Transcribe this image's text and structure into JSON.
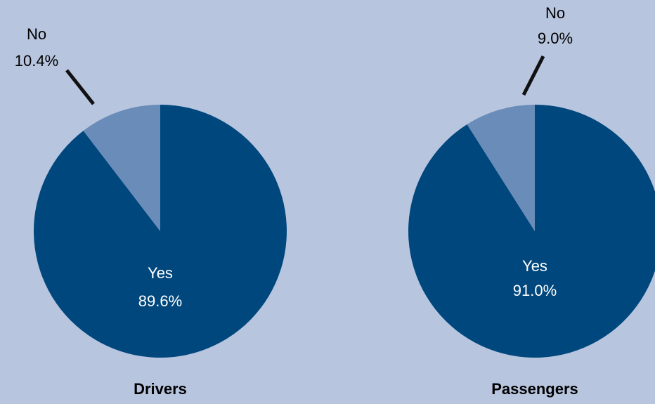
{
  "chart_data": [
    {
      "type": "pie",
      "title": "Drivers",
      "categories": [
        "Yes",
        "No"
      ],
      "values": [
        89.6,
        10.4
      ],
      "value_labels": [
        "89.6%",
        "10.4%"
      ],
      "colors": [
        "#00477d",
        "#6a8cb8"
      ]
    },
    {
      "type": "pie",
      "title": "Passengers",
      "categories": [
        "Yes",
        "No"
      ],
      "values": [
        91.0,
        9.0
      ],
      "value_labels": [
        "91.0%",
        "9.0%"
      ],
      "colors": [
        "#00477d",
        "#6a8cb8"
      ]
    }
  ]
}
